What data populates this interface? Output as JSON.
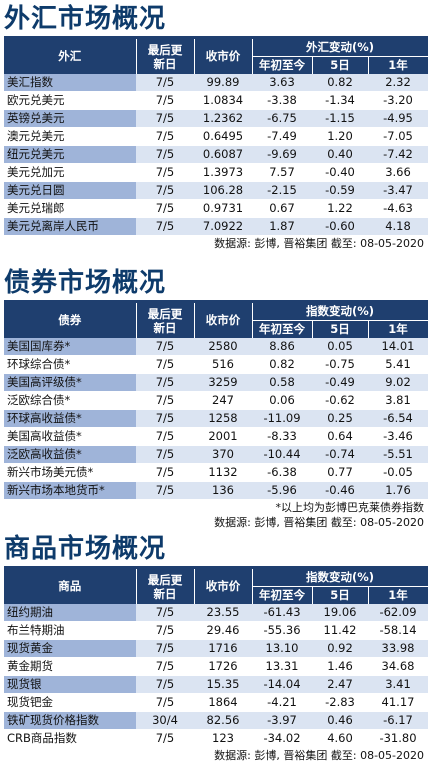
{
  "fx": {
    "title": "外汇市场概况",
    "headers": {
      "name": "外汇",
      "updated": "最后更新日",
      "close": "收市价",
      "change_group": "外汇变动(%)",
      "ytd": "年初至今",
      "d5": "5日",
      "y1": "1年"
    },
    "rows": [
      {
        "name": "美汇指数",
        "date": "7/5",
        "close": "99.89",
        "ytd": "3.63",
        "d5": "0.82",
        "y1": "2.32"
      },
      {
        "name": "欧元兑美元",
        "date": "7/5",
        "close": "1.0834",
        "ytd": "-3.38",
        "d5": "-1.34",
        "y1": "-3.20"
      },
      {
        "name": "英镑兑美元",
        "date": "7/5",
        "close": "1.2362",
        "ytd": "-6.75",
        "d5": "-1.15",
        "y1": "-4.95"
      },
      {
        "name": "澳元兑美元",
        "date": "7/5",
        "close": "0.6495",
        "ytd": "-7.49",
        "d5": "1.20",
        "y1": "-7.05"
      },
      {
        "name": "纽元兑美元",
        "date": "7/5",
        "close": "0.6087",
        "ytd": "-9.69",
        "d5": "0.40",
        "y1": "-7.42"
      },
      {
        "name": "美元兑加元",
        "date": "7/5",
        "close": "1.3973",
        "ytd": "7.57",
        "d5": "-0.40",
        "y1": "3.66"
      },
      {
        "name": "美元兑日圆",
        "date": "7/5",
        "close": "106.28",
        "ytd": "-2.15",
        "d5": "-0.59",
        "y1": "-3.47"
      },
      {
        "name": "美元兑瑞郎",
        "date": "7/5",
        "close": "0.9731",
        "ytd": "0.67",
        "d5": "1.22",
        "y1": "-4.63"
      },
      {
        "name": "美元兑离岸人民币",
        "date": "7/5",
        "close": "7.0922",
        "ytd": "1.87",
        "d5": "-0.60",
        "y1": "4.18"
      }
    ],
    "source": "数据源: 彭博, 晋裕集团 截至: 08-05-2020"
  },
  "bonds": {
    "title": "债券市场概况",
    "headers": {
      "name": "债券",
      "updated": "最后更新日",
      "close": "收市价",
      "change_group": "指数变动(%)",
      "ytd": "年初至今",
      "d5": "5日",
      "y1": "1年"
    },
    "rows": [
      {
        "name": "美国国库券*",
        "date": "7/5",
        "close": "2580",
        "ytd": "8.86",
        "d5": "0.05",
        "y1": "14.01"
      },
      {
        "name": "环球综合债*",
        "date": "7/5",
        "close": "516",
        "ytd": "0.82",
        "d5": "-0.75",
        "y1": "5.41"
      },
      {
        "name": "美国高评级债*",
        "date": "7/5",
        "close": "3259",
        "ytd": "0.58",
        "d5": "-0.49",
        "y1": "9.02"
      },
      {
        "name": "泛欧综合债*",
        "date": "7/5",
        "close": "247",
        "ytd": "0.06",
        "d5": "-0.62",
        "y1": "3.81"
      },
      {
        "name": "环球高收益债*",
        "date": "7/5",
        "close": "1258",
        "ytd": "-11.09",
        "d5": "0.25",
        "y1": "-6.54"
      },
      {
        "name": "美国高收益债*",
        "date": "7/5",
        "close": "2001",
        "ytd": "-8.33",
        "d5": "0.64",
        "y1": "-3.46"
      },
      {
        "name": "泛欧高收益债*",
        "date": "7/5",
        "close": "370",
        "ytd": "-10.44",
        "d5": "-0.74",
        "y1": "-5.51"
      },
      {
        "name": "新兴市场美元债*",
        "date": "7/5",
        "close": "1132",
        "ytd": "-6.38",
        "d5": "0.77",
        "y1": "-0.05"
      },
      {
        "name": "新兴市场本地货币*",
        "date": "7/5",
        "close": "136",
        "ytd": "-5.96",
        "d5": "-0.46",
        "y1": "1.76"
      }
    ],
    "note": "*以上均为彭博巴克莱债券指数",
    "source": "数据源: 彭博, 晋裕集团 截至: 08-05-2020"
  },
  "commodities": {
    "title": "商品市场概况",
    "headers": {
      "name": "商品",
      "updated": "最后更新日",
      "close": "收市价",
      "change_group": "指数变动(%)",
      "ytd": "年初至今",
      "d5": "5日",
      "y1": "1年"
    },
    "rows": [
      {
        "name": "纽约期油",
        "date": "7/5",
        "close": "23.55",
        "ytd": "-61.43",
        "d5": "19.06",
        "y1": "-62.09"
      },
      {
        "name": "布兰特期油",
        "date": "7/5",
        "close": "29.46",
        "ytd": "-55.36",
        "d5": "11.42",
        "y1": "-58.14"
      },
      {
        "name": "现货黄金",
        "date": "7/5",
        "close": "1716",
        "ytd": "13.10",
        "d5": "0.92",
        "y1": "33.98"
      },
      {
        "name": "黄金期货",
        "date": "7/5",
        "close": "1726",
        "ytd": "13.31",
        "d5": "1.46",
        "y1": "34.68"
      },
      {
        "name": "现货银",
        "date": "7/5",
        "close": "15.35",
        "ytd": "-14.04",
        "d5": "2.47",
        "y1": "3.41"
      },
      {
        "name": "现货钯金",
        "date": "7/5",
        "close": "1864",
        "ytd": "-4.21",
        "d5": "-2.83",
        "y1": "41.17"
      },
      {
        "name": "铁矿现货价格指数",
        "date": "30/4",
        "close": "82.56",
        "ytd": "-3.97",
        "d5": "0.46",
        "y1": "-6.17"
      },
      {
        "name": "CRB商品指数",
        "date": "7/5",
        "close": "123",
        "ytd": "-34.02",
        "d5": "4.60",
        "y1": "-31.80"
      }
    ],
    "source": "数据源: 彭博, 晋裕集团 截至: 08-05-2020"
  }
}
